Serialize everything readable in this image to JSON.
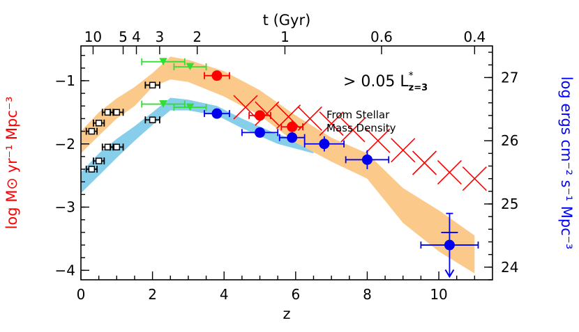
{
  "chart_data": {
    "type": "scatter",
    "xlabel": "z",
    "top_xlabel": "t (Gyr)",
    "ylabel_left": "log M⊙ yr⁻¹ Mpc⁻³",
    "ylabel_right": "log ergs cm⁻² s⁻¹ Mpc⁻³",
    "xlim": [
      0,
      11.5
    ],
    "ylim_left": [
      -4.15,
      -0.45
    ],
    "ylim_right": [
      23.8,
      27.5
    ],
    "x_ticks": [
      "0",
      "2",
      "4",
      "6",
      "8",
      "10"
    ],
    "y_ticks_left": [
      "−1",
      "−2",
      "−3",
      "−4"
    ],
    "y_ticks_right": [
      "24",
      "25",
      "26",
      "27"
    ],
    "top_ticks": [
      {
        "label": "10",
        "z": 0.34
      },
      {
        "label": "5",
        "z": 1.18
      },
      {
        "label": "4",
        "z": 1.55
      },
      {
        "label": "3",
        "z": 2.2
      },
      {
        "label": "2",
        "z": 3.25
      },
      {
        "label": "1",
        "z": 5.7
      },
      {
        "label": "0.6",
        "z": 8.4
      },
      {
        "label": "0.4",
        "z": 11.0
      }
    ],
    "annotation_luminosity": "> 0.05 L*z=3",
    "annotation_luminosity_parts": {
      "main": "> 0.05 L",
      "sup": "*",
      "sub": "z=3"
    },
    "annotation_stellar_line1": "From Stellar",
    "annotation_stellar_line2": "Mass Density",
    "bands": [
      {
        "name": "uncorrected",
        "color": "#87ceeb",
        "upper": [
          [
            0,
            -2.45
          ],
          [
            0.5,
            -2.15
          ],
          [
            1.0,
            -1.92
          ],
          [
            1.5,
            -1.72
          ],
          [
            2.0,
            -1.5
          ],
          [
            2.5,
            -1.27
          ],
          [
            3.0,
            -1.3
          ],
          [
            3.8,
            -1.4
          ],
          [
            4.5,
            -1.6
          ],
          [
            5.5,
            -1.85
          ],
          [
            6.5,
            -2.0
          ]
        ],
        "lower": [
          [
            6.5,
            -2.15
          ],
          [
            5.5,
            -2.0
          ],
          [
            4.5,
            -1.75
          ],
          [
            3.8,
            -1.55
          ],
          [
            3.0,
            -1.47
          ],
          [
            2.5,
            -1.47
          ],
          [
            2.0,
            -1.7
          ],
          [
            1.5,
            -1.95
          ],
          [
            1.0,
            -2.22
          ],
          [
            0.5,
            -2.5
          ],
          [
            0,
            -2.78
          ]
        ]
      },
      {
        "name": "dust-corrected",
        "color": "#fbc98a",
        "upper": [
          [
            0,
            -1.8
          ],
          [
            0.5,
            -1.5
          ],
          [
            1.0,
            -1.28
          ],
          [
            1.5,
            -1.1
          ],
          [
            2.0,
            -0.88
          ],
          [
            2.5,
            -0.62
          ],
          [
            3.0,
            -0.67
          ],
          [
            4.0,
            -0.85
          ],
          [
            5.0,
            -1.15
          ],
          [
            6.0,
            -1.55
          ],
          [
            7.0,
            -1.9
          ],
          [
            8.0,
            -2.15
          ],
          [
            9.0,
            -2.7
          ],
          [
            10.0,
            -3.05
          ],
          [
            11.0,
            -3.45
          ]
        ],
        "lower": [
          [
            11.0,
            -4.05
          ],
          [
            10.0,
            -3.7
          ],
          [
            9.0,
            -3.25
          ],
          [
            8.0,
            -2.55
          ],
          [
            7.0,
            -2.28
          ],
          [
            6.0,
            -1.98
          ],
          [
            5.0,
            -1.55
          ],
          [
            4.0,
            -1.25
          ],
          [
            3.0,
            -1.02
          ],
          [
            2.5,
            -0.98
          ],
          [
            2.0,
            -1.1
          ],
          [
            1.5,
            -1.4
          ],
          [
            1.0,
            -1.6
          ],
          [
            0.5,
            -1.87
          ],
          [
            0,
            -2.15
          ]
        ]
      }
    ],
    "crosses": {
      "color": "#ff0000",
      "x": [
        4.6,
        5.2,
        5.8,
        6.4,
        7.0,
        7.6,
        8.3,
        9.0,
        9.6,
        10.3,
        11.0
      ],
      "y": [
        -1.42,
        -1.52,
        -1.57,
        -1.6,
        -1.68,
        -1.78,
        -1.95,
        -2.1,
        -2.3,
        -2.45,
        -2.55
      ]
    },
    "series": [
      {
        "name": "green_upper",
        "color": "#33dd33",
        "marker": "triangle",
        "points": [
          {
            "x": 2.3,
            "y": -0.7,
            "xerr": 0.6,
            "yerr": 0.05
          },
          {
            "x": 3.05,
            "y": -0.78,
            "xerr": 0.45,
            "yerr": 0.04
          }
        ]
      },
      {
        "name": "green_lower",
        "color": "#33dd33",
        "marker": "triangle",
        "points": [
          {
            "x": 2.3,
            "y": -1.37,
            "xerr": 0.6,
            "yerr": 0.05
          },
          {
            "x": 3.05,
            "y": -1.42,
            "xerr": 0.45,
            "yerr": 0.04
          }
        ]
      },
      {
        "name": "black_upper",
        "color": "#000000",
        "marker": "open-square",
        "points": [
          {
            "x": 0.3,
            "y": -1.8,
            "xerr": 0.15,
            "yerr": 0.05
          },
          {
            "x": 0.5,
            "y": -1.67,
            "xerr": 0.15,
            "yerr": 0.04
          },
          {
            "x": 0.75,
            "y": -1.5,
            "xerr": 0.15,
            "yerr": 0.04
          },
          {
            "x": 1.0,
            "y": -1.5,
            "xerr": 0.18,
            "yerr": 0.04
          },
          {
            "x": 2.0,
            "y": -1.07,
            "xerr": 0.2,
            "yerr": 0.05
          }
        ]
      },
      {
        "name": "black_lower",
        "color": "#000000",
        "marker": "open-square",
        "points": [
          {
            "x": 0.3,
            "y": -2.4,
            "xerr": 0.15,
            "yerr": 0.05
          },
          {
            "x": 0.5,
            "y": -2.27,
            "xerr": 0.15,
            "yerr": 0.04
          },
          {
            "x": 0.75,
            "y": -2.05,
            "xerr": 0.15,
            "yerr": 0.04
          },
          {
            "x": 1.0,
            "y": -2.05,
            "xerr": 0.18,
            "yerr": 0.04
          },
          {
            "x": 2.0,
            "y": -1.62,
            "xerr": 0.2,
            "yerr": 0.04
          }
        ]
      },
      {
        "name": "red_dots",
        "color": "#ff0000",
        "marker": "circle",
        "points": [
          {
            "x": 3.8,
            "y": -0.92,
            "xerr": 0.35,
            "yerr": 0.05
          },
          {
            "x": 5.0,
            "y": -1.55,
            "xerr": 0.3,
            "yerr": 0.08
          },
          {
            "x": 5.9,
            "y": -1.73,
            "xerr": 0.3,
            "yerr": 0.1
          }
        ]
      },
      {
        "name": "blue_dots",
        "color": "#0000ee",
        "marker": "circle",
        "points": [
          {
            "x": 3.8,
            "y": -1.52,
            "xerr": 0.35,
            "yerr": 0.05
          },
          {
            "x": 5.0,
            "y": -1.82,
            "xerr": 0.5,
            "yerr": 0.08
          },
          {
            "x": 5.9,
            "y": -1.9,
            "xerr": 0.35,
            "yerr": 0.08
          },
          {
            "x": 6.8,
            "y": -2.0,
            "xerr": 0.55,
            "yerr": 0.12
          },
          {
            "x": 8.0,
            "y": -2.25,
            "xerr": 0.6,
            "yerr": 0.15
          }
        ]
      },
      {
        "name": "blue_upper_limit",
        "color": "#0000ee",
        "marker": "circle-limit",
        "points": [
          {
            "x": 10.3,
            "y": -3.6,
            "xerr": 0.8,
            "yerr_up": 0.5,
            "yerr_down": 0.5
          }
        ]
      }
    ]
  }
}
